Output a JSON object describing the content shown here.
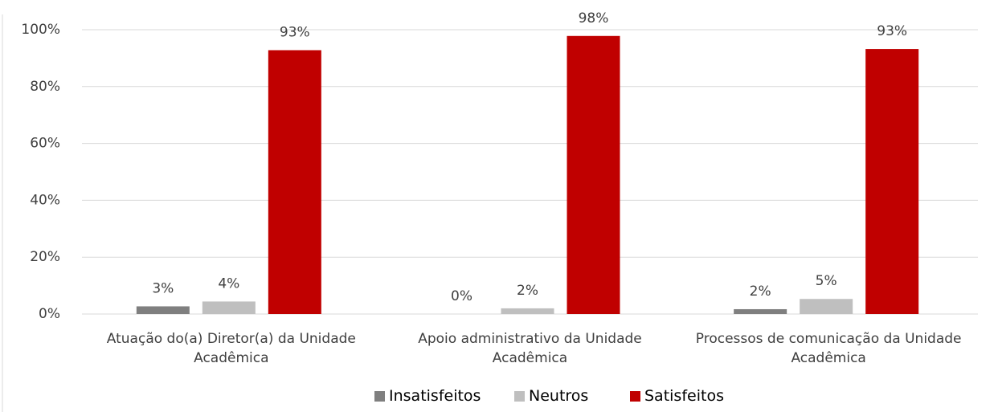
{
  "chart_data": {
    "type": "bar",
    "categories": [
      "Atuação do(a) Diretor(a) da Unidade Acadêmica",
      "Apoio administrativo da Unidade Acadêmica",
      "Processos de comunicação da Unidade Acadêmica"
    ],
    "series": [
      {
        "name": "Insatisfeitos",
        "color": "#7f7f7f",
        "values": [
          2.7,
          0,
          1.7
        ],
        "value_labels": [
          "3%",
          "0%",
          "2%"
        ]
      },
      {
        "name": "Neutros",
        "color": "#bfbfbf",
        "values": [
          4.4,
          2.0,
          5.3
        ],
        "value_labels": [
          "4%",
          "2%",
          "5%"
        ]
      },
      {
        "name": "Satisfeitos",
        "color": "#c00000",
        "values": [
          92.8,
          97.8,
          93.2
        ],
        "value_labels": [
          "93%",
          "98%",
          "93%"
        ]
      }
    ],
    "ylim": [
      0,
      100
    ],
    "yticks": [
      {
        "value": 0,
        "label": "0%"
      },
      {
        "value": 20,
        "label": "20%"
      },
      {
        "value": 40,
        "label": "40%"
      },
      {
        "value": 60,
        "label": "60%"
      },
      {
        "value": 80,
        "label": "80%"
      },
      {
        "value": 100,
        "label": "100%"
      }
    ],
    "grid": true,
    "legend": "bottom"
  }
}
